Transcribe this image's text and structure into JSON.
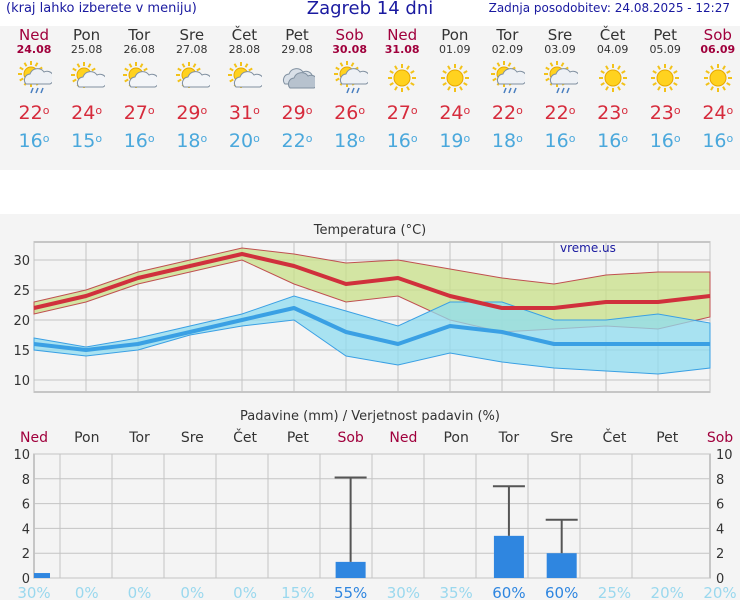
{
  "header": {
    "menu_link": "(kraj lahko izberete v meniju)",
    "title": "Zagreb 14 dni",
    "updated": "Zadnja posodobitev: 24.08.2025 - 12:27"
  },
  "days": [
    {
      "name": "Ned",
      "date": "24.08",
      "max": "22",
      "min": "16",
      "icon": "sun-cloud-rain-icon",
      "weekend": true
    },
    {
      "name": "Pon",
      "date": "25.08",
      "max": "24",
      "min": "15",
      "icon": "sun-cloud-icon",
      "weekend": false
    },
    {
      "name": "Tor",
      "date": "26.08",
      "max": "27",
      "min": "16",
      "icon": "sun-cloud-icon",
      "weekend": false
    },
    {
      "name": "Sre",
      "date": "27.08",
      "max": "29",
      "min": "18",
      "icon": "sun-cloud-icon",
      "weekend": false
    },
    {
      "name": "Čet",
      "date": "28.08",
      "max": "31",
      "min": "20",
      "icon": "sun-cloud-icon",
      "weekend": false
    },
    {
      "name": "Pet",
      "date": "29.08",
      "max": "29",
      "min": "22",
      "icon": "cloud-icon",
      "weekend": false
    },
    {
      "name": "Sob",
      "date": "30.08",
      "max": "26",
      "min": "18",
      "icon": "sun-cloud-rain-icon",
      "weekend": true
    },
    {
      "name": "Ned",
      "date": "31.08",
      "max": "27",
      "min": "16",
      "icon": "sun-icon",
      "weekend": true
    },
    {
      "name": "Pon",
      "date": "01.09",
      "max": "24",
      "min": "19",
      "icon": "sun-icon",
      "weekend": false
    },
    {
      "name": "Tor",
      "date": "02.09",
      "max": "22",
      "min": "18",
      "icon": "sun-cloud-rain-icon",
      "weekend": false
    },
    {
      "name": "Sre",
      "date": "03.09",
      "max": "22",
      "min": "16",
      "icon": "sun-cloud-rain-icon",
      "weekend": false
    },
    {
      "name": "Čet",
      "date": "04.09",
      "max": "23",
      "min": "16",
      "icon": "sun-icon",
      "weekend": false
    },
    {
      "name": "Pet",
      "date": "05.09",
      "max": "23",
      "min": "16",
      "icon": "sun-icon",
      "weekend": false
    },
    {
      "name": "Sob",
      "date": "06.09",
      "max": "24",
      "min": "16",
      "icon": "sun-icon",
      "weekend": true
    }
  ],
  "degree_symbol": "o",
  "chart_data": [
    {
      "type": "line",
      "title": "Temperatura (°C)",
      "watermark": "vreme.us",
      "ylim": [
        8,
        33
      ],
      "yticks": [
        10,
        15,
        20,
        25,
        30
      ],
      "grid": true,
      "series": [
        {
          "key": "max",
          "values": [
            22,
            24,
            27,
            29,
            31,
            29,
            26,
            27,
            24,
            22,
            22,
            23,
            23,
            24
          ],
          "color": "#d0303c"
        },
        {
          "key": "max_upper",
          "values": [
            23,
            25,
            28,
            30,
            32,
            31,
            29.5,
            30,
            28.5,
            27,
            26,
            27.5,
            28,
            28
          ]
        },
        {
          "key": "max_lower",
          "values": [
            21,
            23,
            26,
            28,
            30,
            26,
            23,
            24,
            20,
            18,
            18.5,
            19,
            18.5,
            20.5
          ]
        },
        {
          "key": "min",
          "values": [
            16,
            15,
            16,
            18,
            20,
            22,
            18,
            16,
            19,
            18,
            16,
            16,
            16,
            16
          ],
          "color": "#3aa0e4"
        },
        {
          "key": "min_upper",
          "values": [
            17,
            15.5,
            17,
            19,
            21,
            24,
            21.5,
            19,
            23,
            23,
            20,
            20,
            21,
            19.5
          ]
        },
        {
          "key": "min_lower",
          "values": [
            15,
            14,
            15,
            17.5,
            19,
            20,
            14,
            12.5,
            14.5,
            13,
            12,
            11.5,
            11,
            12
          ]
        }
      ]
    },
    {
      "type": "bar",
      "title": "Padavine (mm) / Verjetnost padavin (%)",
      "ylim": [
        0,
        10
      ],
      "yticks": [
        0,
        2,
        4,
        6,
        8,
        10
      ],
      "categories": [
        "Ned",
        "Pon",
        "Tor",
        "Sre",
        "Čet",
        "Pet",
        "Sob",
        "Ned",
        "Pon",
        "Tor",
        "Sre",
        "Čet",
        "Pet",
        "Sob"
      ],
      "values": [
        0.4,
        0,
        0,
        0,
        0,
        0,
        1.3,
        0,
        0,
        3.4,
        2,
        0,
        0,
        0
      ],
      "error_high": [
        0,
        0,
        0,
        0,
        0,
        0,
        8.1,
        0,
        0,
        7.4,
        4.7,
        0,
        0,
        0
      ],
      "probability": [
        "30%",
        "0%",
        "0%",
        "0%",
        "0%",
        "15%",
        "55%",
        "30%",
        "35%",
        "60%",
        "60%",
        "25%",
        "20%",
        "20%"
      ],
      "bar_color": "#2f86e0"
    }
  ]
}
